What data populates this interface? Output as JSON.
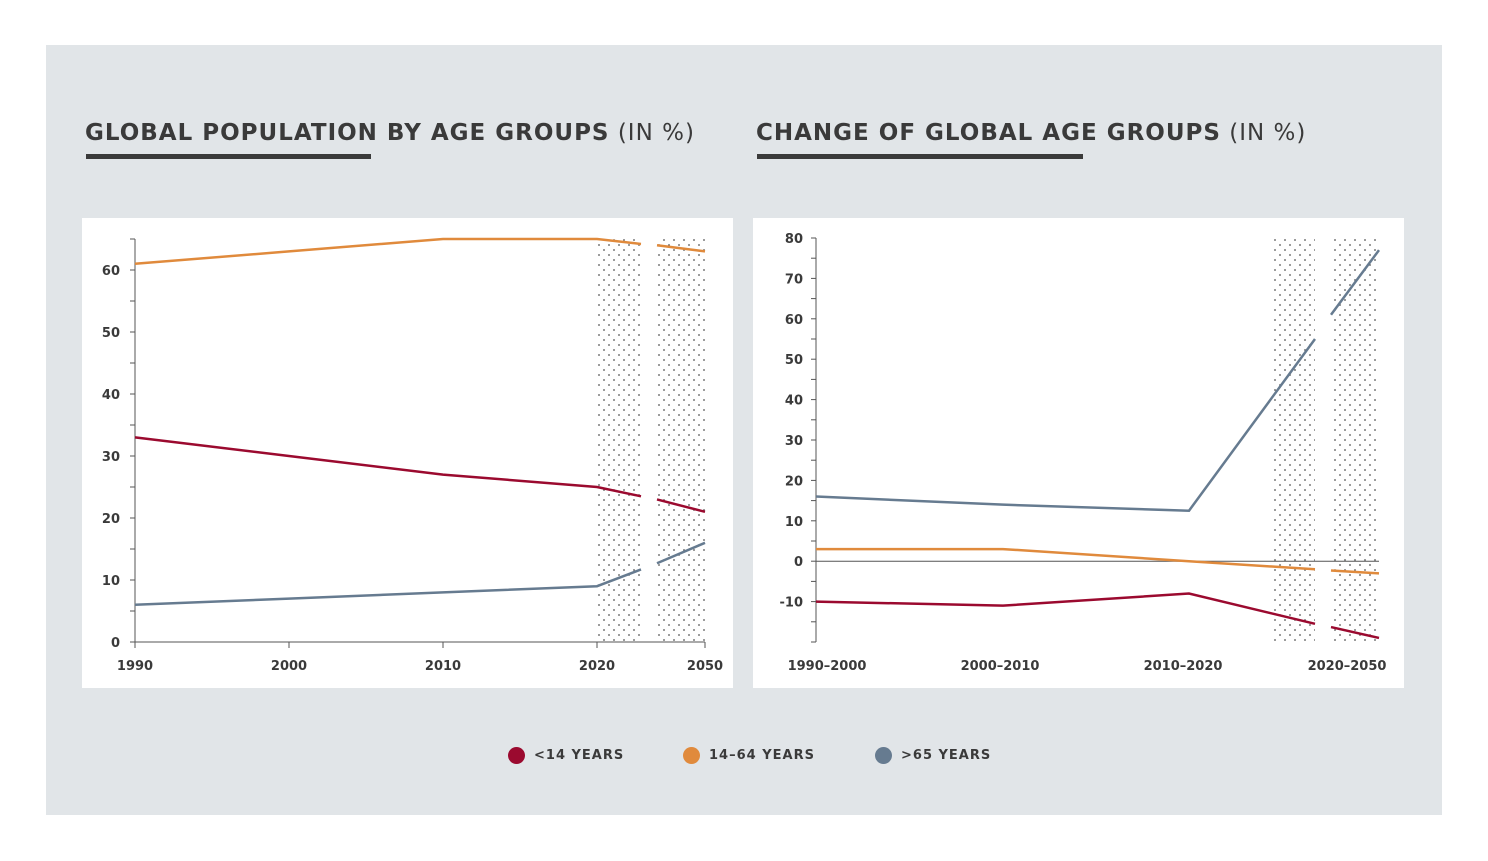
{
  "titles": {
    "left": {
      "bold_a": "GLOBAL POPULATION",
      "bold_b": " BY AGE GROUPS",
      "unit": " (IN %)"
    },
    "right": {
      "bold_a": "CHANGE OF GLOBAL AGE",
      "bold_b": " GROUPS",
      "unit": " (IN %)"
    }
  },
  "legend": [
    {
      "label": "<14 YEARS",
      "color": "#9b0a2f"
    },
    {
      "label": "14–64 YEARS",
      "color": "#e08a3c"
    },
    {
      "label": ">65 YEARS",
      "color": "#667b90"
    }
  ],
  "colors": {
    "panel": "#e1e5e8",
    "axis": "#555555",
    "text": "#3a3a3a"
  },
  "chart_data": [
    {
      "type": "line",
      "title": "GLOBAL POPULATION BY AGE GROUPS (IN %)",
      "x_ticks": [
        "1990",
        "2000",
        "2010",
        "2020",
        "2050"
      ],
      "y_ticks": [
        0,
        10,
        20,
        30,
        40,
        50,
        60
      ],
      "ylim": [
        0,
        65
      ],
      "projection_shaded": true,
      "series": [
        {
          "name": "<14 YEARS",
          "points": [
            [
              "1990",
              33
            ],
            [
              "2000",
              30
            ],
            [
              "2010",
              27
            ],
            [
              "2020",
              25
            ],
            [
              "2020+",
              23.5
            ],
            [
              "2050-",
              23
            ],
            [
              "2050",
              21
            ]
          ]
        },
        {
          "name": "14–64 YEARS",
          "points": [
            [
              "1990",
              61
            ],
            [
              "2000",
              63
            ],
            [
              "2010",
              65
            ],
            [
              "2020",
              65
            ],
            [
              "2020+",
              64.2
            ],
            [
              "2050-",
              64
            ],
            [
              "2050",
              63
            ]
          ]
        },
        {
          "name": ">65 YEARS",
          "points": [
            [
              "1990",
              6
            ],
            [
              "2000",
              7
            ],
            [
              "2010",
              8
            ],
            [
              "2020",
              9
            ],
            [
              "2020+",
              11.7
            ],
            [
              "2050-",
              12.7
            ],
            [
              "2050",
              16
            ]
          ]
        }
      ]
    },
    {
      "type": "line",
      "title": "CHANGE OF GLOBAL AGE GROUPS (IN %)",
      "x_ticks": [
        "1990–2000",
        "2000–2010",
        "2010–2020",
        "2020–2050"
      ],
      "y_ticks": [
        -10,
        0,
        10,
        20,
        30,
        40,
        50,
        60,
        70,
        80
      ],
      "ylim": [
        -20,
        80
      ],
      "projection_shaded": true,
      "series": [
        {
          "name": "<14 YEARS",
          "points": [
            [
              "1990–2000",
              -10
            ],
            [
              "2000–2010",
              -11
            ],
            [
              "2010–2020",
              -8
            ],
            [
              "proj-a-end",
              -15.5
            ],
            [
              "proj-b-start",
              -16.3
            ],
            [
              "2020–2050",
              -19
            ]
          ]
        },
        {
          "name": "14–64 YEARS",
          "points": [
            [
              "1990–2000",
              3
            ],
            [
              "2000–2010",
              3
            ],
            [
              "2010–2020",
              0
            ],
            [
              "proj-a-end",
              -2
            ],
            [
              "proj-b-start",
              -2.3
            ],
            [
              "2020–2050",
              -3
            ]
          ]
        },
        {
          "name": ">65 YEARS",
          "points": [
            [
              "1990–2000",
              16
            ],
            [
              "2000–2010",
              14
            ],
            [
              "2010–2020",
              12.5
            ],
            [
              "proj-a-end",
              55
            ],
            [
              "proj-b-start",
              61
            ],
            [
              "2020–2050",
              77
            ]
          ]
        }
      ]
    }
  ]
}
